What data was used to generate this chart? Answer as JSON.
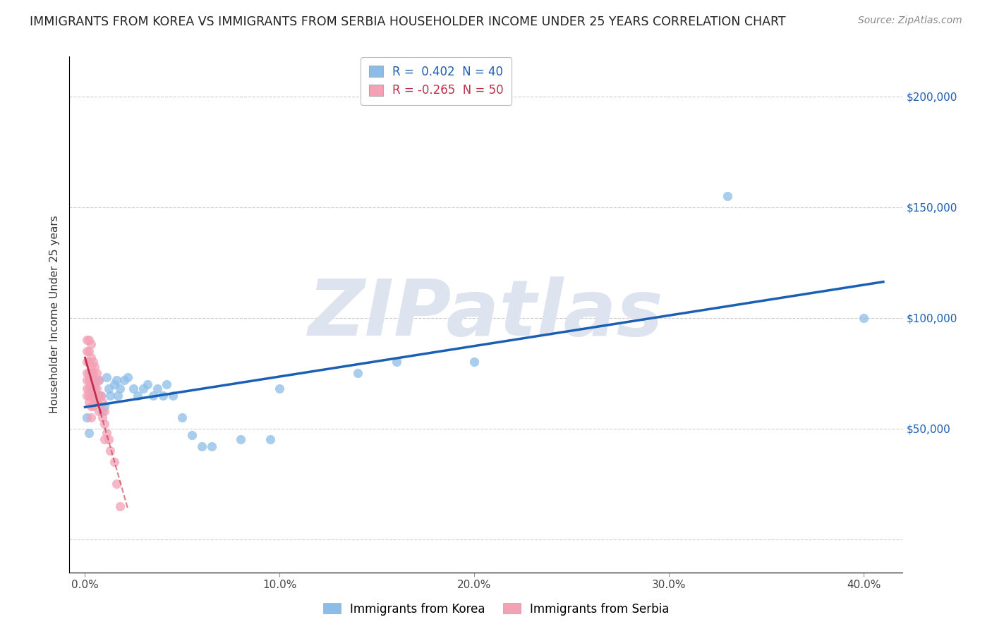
{
  "title": "IMMIGRANTS FROM KOREA VS IMMIGRANTS FROM SERBIA HOUSEHOLDER INCOME UNDER 25 YEARS CORRELATION CHART",
  "source": "Source: ZipAtlas.com",
  "ylabel": "Householder Income Under 25 years",
  "xlabel_ticks": [
    "0.0%",
    "10.0%",
    "20.0%",
    "30.0%",
    "40.0%"
  ],
  "xlabel_vals": [
    0.0,
    0.1,
    0.2,
    0.3,
    0.4
  ],
  "ytick_vals": [
    0,
    50000,
    100000,
    150000,
    200000
  ],
  "right_ytick_labels": [
    "$50,000",
    "$100,000",
    "$150,000",
    "$200,000"
  ],
  "right_ytick_vals": [
    50000,
    100000,
    150000,
    200000
  ],
  "xlim": [
    -0.008,
    0.42
  ],
  "ylim": [
    -15000,
    218000
  ],
  "korea_R": 0.402,
  "korea_N": 40,
  "serbia_R": -0.265,
  "serbia_N": 50,
  "korea_color": "#8bbde8",
  "serbia_color": "#f4a0b5",
  "korea_line_color": "#1a5fb4",
  "serbia_line_color": "#c0304a",
  "watermark_text": "ZIPatlas",
  "watermark_color": "#dde4f0",
  "korea_x": [
    0.001,
    0.002,
    0.003,
    0.004,
    0.005,
    0.006,
    0.007,
    0.008,
    0.009,
    0.01,
    0.011,
    0.012,
    0.013,
    0.015,
    0.016,
    0.017,
    0.018,
    0.02,
    0.022,
    0.025,
    0.027,
    0.03,
    0.032,
    0.035,
    0.037,
    0.04,
    0.042,
    0.045,
    0.05,
    0.055,
    0.06,
    0.065,
    0.08,
    0.095,
    0.1,
    0.14,
    0.16,
    0.2,
    0.33,
    0.4
  ],
  "korea_y": [
    55000,
    48000,
    75000,
    68000,
    70000,
    62000,
    72000,
    65000,
    58000,
    60000,
    73000,
    68000,
    65000,
    70000,
    72000,
    65000,
    68000,
    72000,
    73000,
    68000,
    65000,
    68000,
    70000,
    65000,
    68000,
    65000,
    70000,
    65000,
    55000,
    47000,
    42000,
    42000,
    45000,
    45000,
    68000,
    75000,
    80000,
    80000,
    155000,
    100000
  ],
  "serbia_x": [
    0.001,
    0.001,
    0.001,
    0.001,
    0.001,
    0.001,
    0.001,
    0.002,
    0.002,
    0.002,
    0.002,
    0.002,
    0.002,
    0.002,
    0.002,
    0.003,
    0.003,
    0.003,
    0.003,
    0.003,
    0.003,
    0.003,
    0.003,
    0.004,
    0.004,
    0.004,
    0.004,
    0.004,
    0.005,
    0.005,
    0.005,
    0.005,
    0.006,
    0.006,
    0.006,
    0.007,
    0.007,
    0.007,
    0.008,
    0.009,
    0.009,
    0.01,
    0.01,
    0.01,
    0.011,
    0.012,
    0.013,
    0.015,
    0.016,
    0.018
  ],
  "serbia_y": [
    90000,
    85000,
    80000,
    75000,
    72000,
    68000,
    65000,
    90000,
    85000,
    80000,
    75000,
    72000,
    68000,
    65000,
    62000,
    88000,
    82000,
    78000,
    72000,
    68000,
    65000,
    60000,
    55000,
    80000,
    75000,
    68000,
    65000,
    60000,
    78000,
    72000,
    68000,
    62000,
    75000,
    68000,
    62000,
    72000,
    65000,
    58000,
    65000,
    62000,
    55000,
    58000,
    52000,
    45000,
    48000,
    45000,
    40000,
    35000,
    25000,
    15000
  ],
  "serbia_line_xrange": [
    0.0,
    0.022
  ],
  "korea_line_xrange": [
    0.0,
    0.41
  ]
}
